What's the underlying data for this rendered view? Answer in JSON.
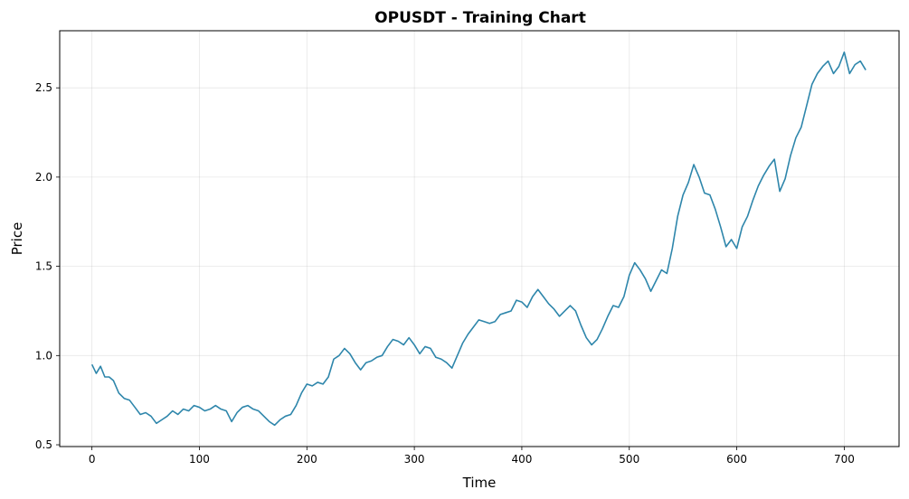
{
  "chart_data": {
    "type": "line",
    "title": "OPUSDT - Training Chart",
    "xlabel": "Time",
    "ylabel": "Price",
    "xlim": [
      -30,
      751
    ],
    "ylim": [
      0.49,
      2.82
    ],
    "xticks": [
      0,
      100,
      200,
      300,
      400,
      500,
      600,
      700
    ],
    "yticks": [
      0.5,
      1.0,
      1.5,
      2.0,
      2.5
    ],
    "ytick_labels": [
      "0.5",
      "1.0",
      "1.5",
      "2.0",
      "2.5"
    ],
    "grid": true,
    "series": [
      {
        "color": "#2e86ab",
        "x": [
          0,
          4,
          8,
          12,
          16,
          20,
          25,
          30,
          35,
          40,
          45,
          50,
          55,
          60,
          65,
          70,
          75,
          80,
          85,
          90,
          95,
          100,
          105,
          110,
          115,
          120,
          125,
          130,
          135,
          140,
          145,
          150,
          155,
          160,
          165,
          170,
          175,
          180,
          185,
          190,
          195,
          200,
          205,
          210,
          215,
          220,
          225,
          230,
          235,
          240,
          245,
          250,
          255,
          260,
          265,
          270,
          275,
          280,
          285,
          290,
          295,
          300,
          305,
          310,
          315,
          320,
          325,
          330,
          335,
          340,
          345,
          350,
          355,
          360,
          365,
          370,
          375,
          380,
          385,
          390,
          395,
          400,
          405,
          410,
          415,
          420,
          425,
          430,
          435,
          440,
          445,
          450,
          455,
          460,
          465,
          470,
          475,
          480,
          485,
          490,
          495,
          500,
          505,
          510,
          515,
          520,
          525,
          530,
          535,
          540,
          545,
          550,
          555,
          560,
          565,
          570,
          575,
          580,
          585,
          590,
          595,
          600,
          605,
          610,
          615,
          620,
          625,
          630,
          635,
          640,
          645,
          650,
          655,
          660,
          665,
          670,
          675,
          680,
          685,
          690,
          695,
          700,
          705,
          710,
          715,
          720
        ],
        "y": [
          0.95,
          0.9,
          0.94,
          0.88,
          0.88,
          0.86,
          0.79,
          0.76,
          0.75,
          0.71,
          0.67,
          0.68,
          0.66,
          0.62,
          0.64,
          0.66,
          0.69,
          0.67,
          0.7,
          0.69,
          0.72,
          0.71,
          0.69,
          0.7,
          0.72,
          0.7,
          0.69,
          0.63,
          0.68,
          0.71,
          0.72,
          0.7,
          0.69,
          0.66,
          0.63,
          0.61,
          0.64,
          0.66,
          0.67,
          0.72,
          0.79,
          0.84,
          0.83,
          0.85,
          0.84,
          0.88,
          0.98,
          1.0,
          1.04,
          1.01,
          0.96,
          0.92,
          0.96,
          0.97,
          0.99,
          1.0,
          1.05,
          1.09,
          1.08,
          1.06,
          1.1,
          1.06,
          1.01,
          1.05,
          1.04,
          0.99,
          0.98,
          0.96,
          0.93,
          1.0,
          1.07,
          1.12,
          1.16,
          1.2,
          1.19,
          1.18,
          1.19,
          1.23,
          1.24,
          1.25,
          1.31,
          1.3,
          1.27,
          1.33,
          1.37,
          1.33,
          1.29,
          1.26,
          1.22,
          1.25,
          1.28,
          1.25,
          1.17,
          1.1,
          1.06,
          1.09,
          1.15,
          1.22,
          1.28,
          1.27,
          1.33,
          1.45,
          1.52,
          1.48,
          1.43,
          1.36,
          1.42,
          1.48,
          1.46,
          1.6,
          1.78,
          1.9,
          1.97,
          2.07,
          2.0,
          1.91,
          1.9,
          1.82,
          1.72,
          1.61,
          1.65,
          1.6,
          1.72,
          1.78,
          1.87,
          1.95,
          2.01,
          2.06,
          2.1,
          1.92,
          1.99,
          2.12,
          2.22,
          2.28,
          2.4,
          2.52,
          2.58,
          2.62,
          2.65,
          2.58,
          2.62,
          2.7,
          2.58,
          2.63,
          2.65,
          2.6
        ]
      }
    ]
  }
}
